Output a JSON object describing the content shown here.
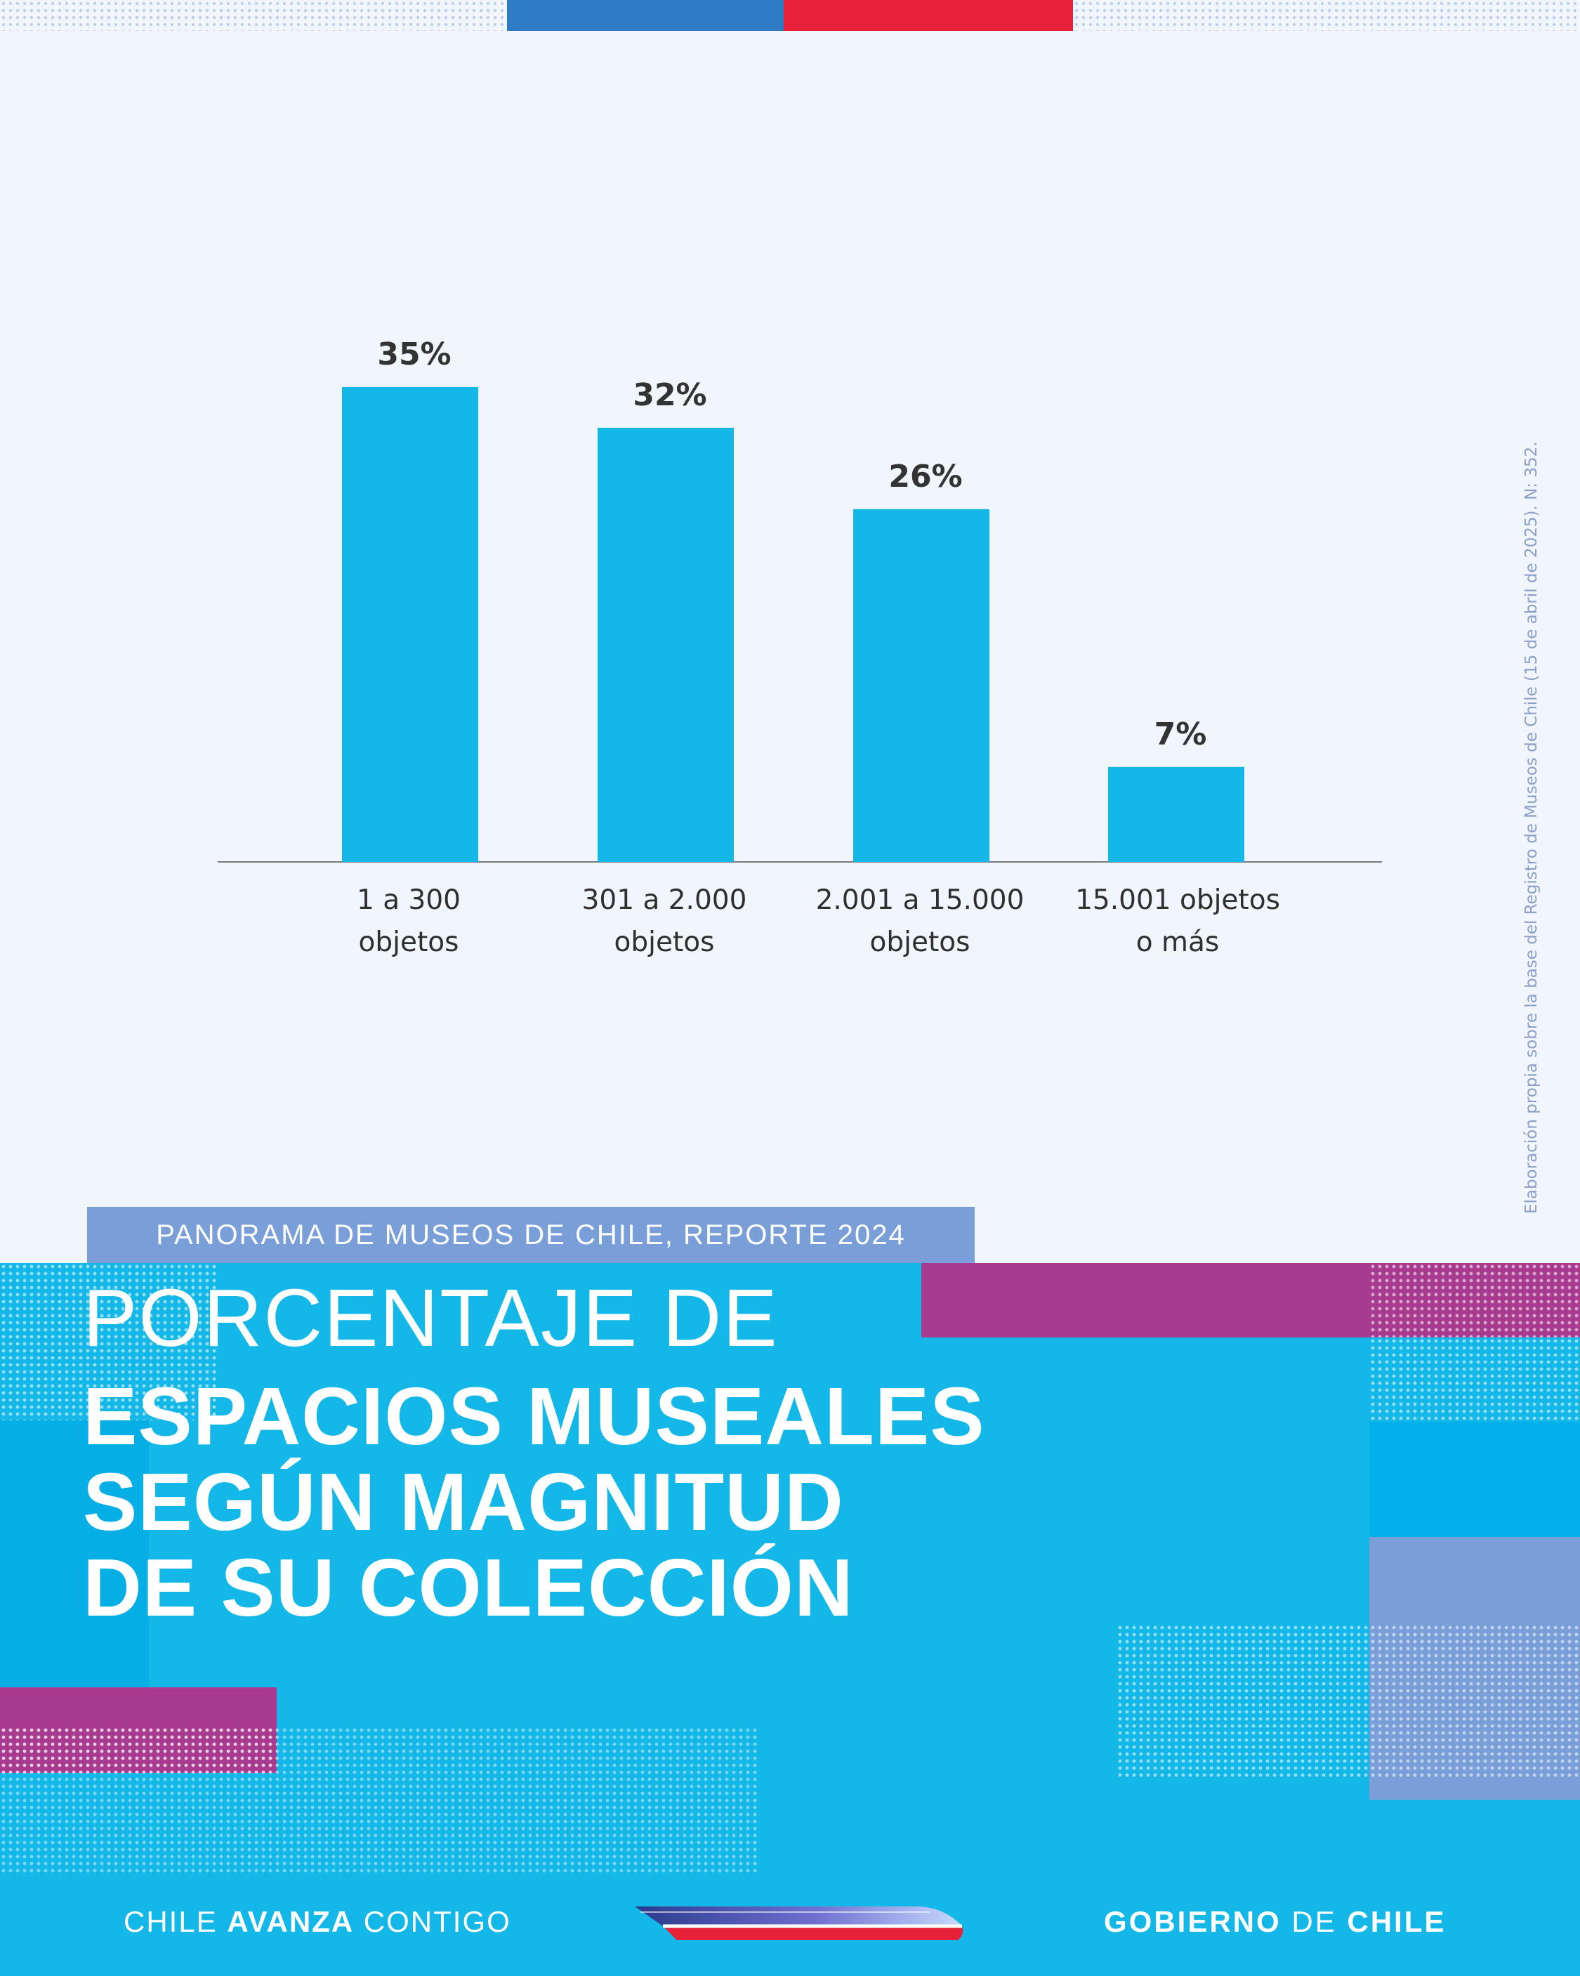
{
  "header": {
    "report_tag": "PANORAMA DE MUSEOS DE CHILE, REPORTE 2024",
    "title_line1": "PORCENTAJE DE",
    "title_line2": "ESPACIOS MUSEALES",
    "title_line3": "SEGÚN MAGNITUD",
    "title_line4": "DE SU COLECCIÓN"
  },
  "source_note": "Elaboración propia sobre la base del Registro de Museos de Chile (15 de abril de 2025). N: 352.",
  "footer": {
    "left_part1": "CHILE ",
    "left_part2": "AVANZA",
    "left_part3": " CONTIGO",
    "right_part1": "GOBIERNO",
    "right_part2": " DE ",
    "right_part3": "CHILE"
  },
  "colors": {
    "bar": "#13b8e8",
    "panel": "#13b8e8",
    "magenta": "#a83b8f",
    "lavender": "#7a9fd8",
    "flag_blue": "#2f7cc4",
    "flag_red": "#e8213a"
  },
  "chart_data": {
    "type": "bar",
    "categories": [
      [
        "1 a 300",
        "objetos"
      ],
      [
        "301 a 2.000",
        "objetos"
      ],
      [
        "2.001 a 15.000",
        "objetos"
      ],
      [
        "15.001 objetos",
        "o más"
      ]
    ],
    "values": [
      35,
      32,
      26,
      7
    ],
    "value_labels": [
      "35%",
      "32%",
      "26%",
      "7%"
    ],
    "unit": "%",
    "ylim": [
      0,
      35
    ],
    "grid": false,
    "legend": "none"
  }
}
